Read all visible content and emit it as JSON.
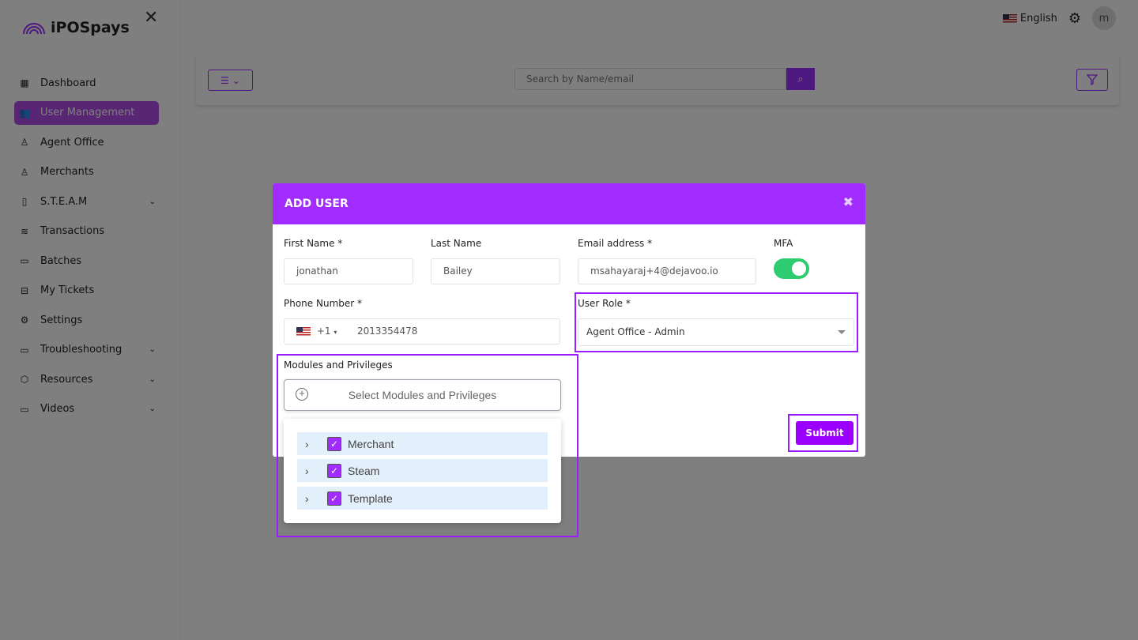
{
  "brand": {
    "name": "iPOSpays"
  },
  "header": {
    "language": "English"
  },
  "user": {
    "avatar_initial": "m"
  },
  "sidebar": {
    "items": [
      {
        "label": "Dashboard",
        "icon": "grid-icon"
      },
      {
        "label": "User Management",
        "icon": "users-icon",
        "active": true
      },
      {
        "label": "Agent Office",
        "icon": "user-plus-icon"
      },
      {
        "label": "Merchants",
        "icon": "users-icon"
      },
      {
        "label": "S.T.E.A.M",
        "icon": "tablet-icon",
        "expandable": true
      },
      {
        "label": "Transactions",
        "icon": "layers-icon"
      },
      {
        "label": "Batches",
        "icon": "file-icon"
      },
      {
        "label": "My Tickets",
        "icon": "inbox-icon"
      },
      {
        "label": "Settings",
        "icon": "gear-icon"
      },
      {
        "label": "Troubleshooting",
        "icon": "monitor-icon",
        "expandable": true
      },
      {
        "label": "Resources",
        "icon": "box-icon",
        "expandable": true
      },
      {
        "label": "Videos",
        "icon": "video-icon",
        "expandable": true
      }
    ]
  },
  "toolbar": {
    "search_placeholder": "Search by Name/email"
  },
  "modal": {
    "title": "ADD USER",
    "first_name": {
      "label": "First Name *",
      "value": "jonathan"
    },
    "last_name": {
      "label": "Last Name",
      "value": "Bailey"
    },
    "email": {
      "label": "Email address *",
      "value": "msahayaraj+4@dejavoo.io"
    },
    "mfa": {
      "label": "MFA",
      "enabled": true
    },
    "phone": {
      "label": "Phone Number *",
      "country_code": "+1",
      "value": "2013354478"
    },
    "user_role": {
      "label": "User Role *",
      "value": "Agent Office - Admin"
    },
    "modules": {
      "label": "Modules and Privileges",
      "button": "Select Modules and Privileges",
      "items": [
        {
          "label": "Merchant",
          "checked": true
        },
        {
          "label": "Steam",
          "checked": true
        },
        {
          "label": "Template",
          "checked": true
        }
      ]
    },
    "submit": "Submit"
  },
  "colors": {
    "accent": "#9b00ff",
    "header": "#a22cff",
    "toggle_on": "#2ecc71"
  }
}
